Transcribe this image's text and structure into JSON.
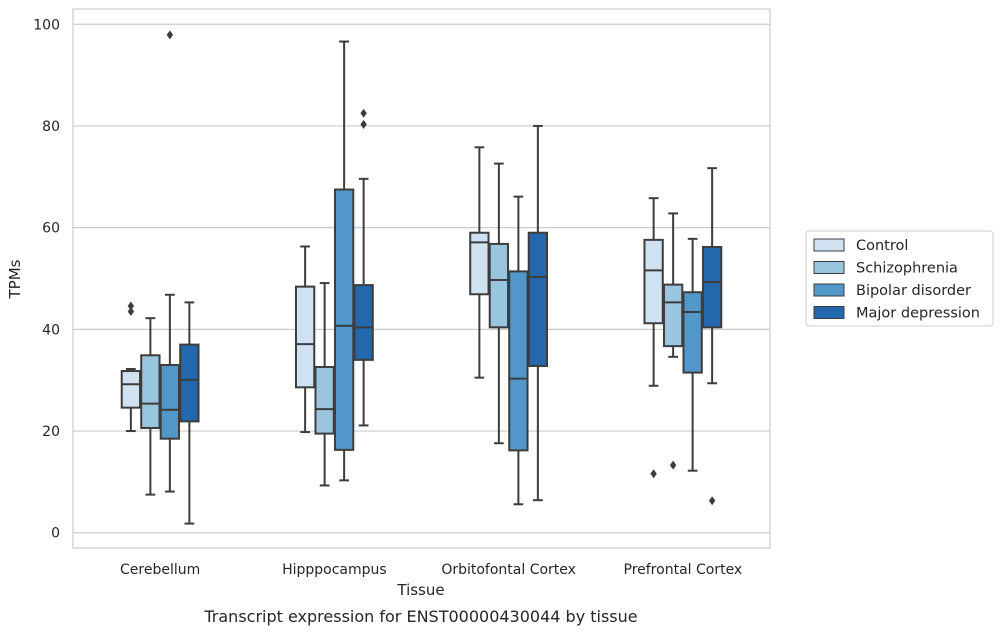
{
  "chart_data": {
    "type": "box",
    "caption": "Transcript expression for ENST00000430044 by tissue",
    "xlabel": "Tissue",
    "ylabel": "TPMs",
    "ylim": [
      -3,
      103
    ],
    "yticks": [
      0,
      20,
      40,
      60,
      80,
      100
    ],
    "grid": "horizontal",
    "legend_position": "right",
    "categories": [
      "Cerebellum",
      "Hipppocampus",
      "Orbitofontal Cortex",
      "Prefrontal Cortex"
    ],
    "series": [
      {
        "name": "Control",
        "color": "#d0e2f2",
        "boxes": [
          {
            "whislo": 20,
            "q1": 24.6,
            "med": 29.2,
            "q3": 31.8,
            "whishi": 32.2,
            "fliers": [
              43.5,
              44.6
            ]
          },
          {
            "whislo": 19.8,
            "q1": 28.6,
            "med": 37.1,
            "q3": 48.4,
            "whishi": 56.3,
            "fliers": []
          },
          {
            "whislo": 30.5,
            "q1": 46.9,
            "med": 57.1,
            "q3": 59.0,
            "whishi": 75.8,
            "fliers": []
          },
          {
            "whislo": 28.9,
            "q1": 41.2,
            "med": 51.6,
            "q3": 57.6,
            "whishi": 65.8,
            "fliers": [
              11.6
            ]
          }
        ]
      },
      {
        "name": "Schizophrenia",
        "color": "#9ac5de",
        "boxes": [
          {
            "whislo": 7.5,
            "q1": 20.6,
            "med": 25.4,
            "q3": 34.9,
            "whishi": 42.2,
            "fliers": []
          },
          {
            "whislo": 9.3,
            "q1": 19.5,
            "med": 24.3,
            "q3": 32.6,
            "whishi": 49.1,
            "fliers": []
          },
          {
            "whislo": 17.6,
            "q1": 40.4,
            "med": 49.7,
            "q3": 56.8,
            "whishi": 72.6,
            "fliers": []
          },
          {
            "whislo": 34.6,
            "q1": 36.7,
            "med": 45.3,
            "q3": 48.8,
            "whishi": 62.8,
            "fliers": [
              13.3
            ]
          }
        ]
      },
      {
        "name": "Bipolar disorder",
        "color": "#5197c9",
        "boxes": [
          {
            "whislo": 8.1,
            "q1": 18.5,
            "med": 24.2,
            "q3": 33.0,
            "whishi": 46.8,
            "fliers": [
              97.9
            ]
          },
          {
            "whislo": 10.3,
            "q1": 16.3,
            "med": 40.7,
            "q3": 67.5,
            "whishi": 96.6,
            "fliers": []
          },
          {
            "whislo": 5.6,
            "q1": 16.2,
            "med": 30.3,
            "q3": 51.4,
            "whishi": 66.1,
            "fliers": []
          },
          {
            "whislo": 12.2,
            "q1": 31.5,
            "med": 43.4,
            "q3": 47.3,
            "whishi": 57.8,
            "fliers": []
          }
        ]
      },
      {
        "name": "Major depression",
        "color": "#2367ad",
        "boxes": [
          {
            "whislo": 1.8,
            "q1": 21.9,
            "med": 30.1,
            "q3": 37.0,
            "whishi": 45.3,
            "fliers": []
          },
          {
            "whislo": 21.1,
            "q1": 34.0,
            "med": 40.4,
            "q3": 48.7,
            "whishi": 69.6,
            "fliers": [
              80.3,
              82.5
            ]
          },
          {
            "whislo": 6.4,
            "q1": 32.8,
            "med": 50.3,
            "q3": 59.0,
            "whishi": 80.0,
            "fliers": []
          },
          {
            "whislo": 29.4,
            "q1": 40.4,
            "med": 49.3,
            "q3": 56.2,
            "whishi": 71.7,
            "fliers": [
              6.3
            ]
          }
        ]
      }
    ]
  }
}
